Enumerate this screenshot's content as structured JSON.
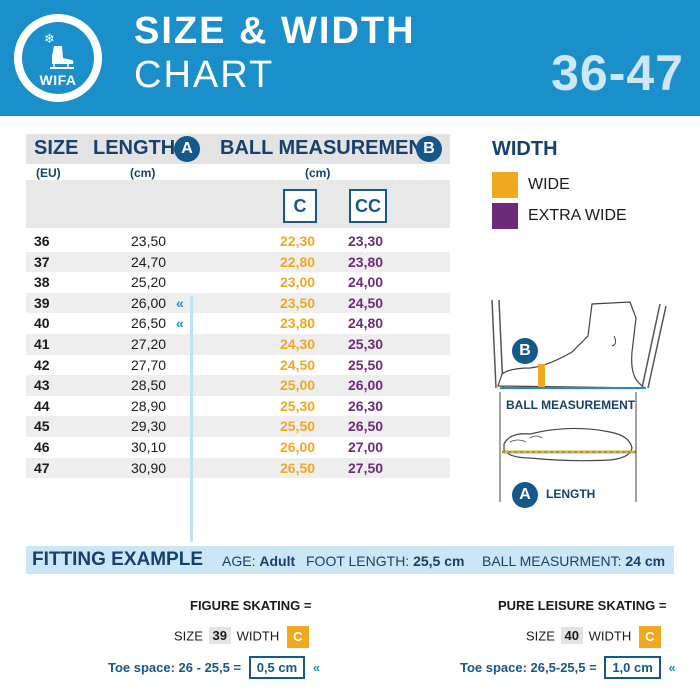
{
  "header": {
    "logo_text": "WIFA",
    "title_line1": "SIZE & WIDTH",
    "title_line2": "CHART",
    "size_range": "36-47",
    "background_color": "#1a8fc9"
  },
  "table": {
    "col_size": "SIZE",
    "col_size_unit": "(EU)",
    "col_length": "LENGTH",
    "col_length_badge": "A",
    "col_length_unit": "(cm)",
    "col_ball": "BALL MEASUREMENT",
    "col_ball_badge": "B",
    "col_ball_unit": "(cm)",
    "width_c_label": "C",
    "width_cc_label": "CC",
    "rows": [
      {
        "size": "36",
        "length": "23,50",
        "wide": "22,30",
        "extra_wide": "23,30",
        "marker": ""
      },
      {
        "size": "37",
        "length": "24,70",
        "wide": "22,80",
        "extra_wide": "23,80",
        "marker": ""
      },
      {
        "size": "38",
        "length": "25,20",
        "wide": "23,00",
        "extra_wide": "24,00",
        "marker": ""
      },
      {
        "size": "39",
        "length": "26,00",
        "wide": "23,50",
        "extra_wide": "24,50",
        "marker": "«"
      },
      {
        "size": "40",
        "length": "26,50",
        "wide": "23,80",
        "extra_wide": "24,80",
        "marker": "«"
      },
      {
        "size": "41",
        "length": "27,20",
        "wide": "24,30",
        "extra_wide": "25,30",
        "marker": ""
      },
      {
        "size": "42",
        "length": "27,70",
        "wide": "24,50",
        "extra_wide": "25,50",
        "marker": ""
      },
      {
        "size": "43",
        "length": "28,50",
        "wide": "25,00",
        "extra_wide": "26,00",
        "marker": ""
      },
      {
        "size": "44",
        "length": "28,90",
        "wide": "25,30",
        "extra_wide": "26,30",
        "marker": ""
      },
      {
        "size": "45",
        "length": "29,30",
        "wide": "25,50",
        "extra_wide": "26,50",
        "marker": ""
      },
      {
        "size": "46",
        "length": "30,10",
        "wide": "26,00",
        "extra_wide": "27,00",
        "marker": ""
      },
      {
        "size": "47",
        "length": "30,90",
        "wide": "26,50",
        "extra_wide": "27,50",
        "marker": ""
      }
    ]
  },
  "legend": {
    "title": "WIDTH",
    "items": [
      {
        "label": "WIDE",
        "color": "#f0a81e"
      },
      {
        "label": "EXTRA WIDE",
        "color": "#6e2a7a"
      }
    ]
  },
  "diagram": {
    "badge_b": "B",
    "ball_label": "BALL MEASUREMENT",
    "badge_a": "A",
    "length_label": "LENGTH"
  },
  "fitting": {
    "title": "FITTING EXAMPLE",
    "age_label": "AGE:",
    "age_value": "Adult",
    "foot_label": "FOOT LENGTH:",
    "foot_value": "25,5 cm",
    "ball_label": "BALL MEASURMENT:",
    "ball_value": "24 cm"
  },
  "examples": {
    "figure": {
      "heading": "FIGURE SKATING =",
      "size_label": "SIZE",
      "size_value": "39",
      "width_label": "WIDTH",
      "width_value": "C",
      "toe_label": "Toe space: 26 - 25,5 =",
      "toe_value": "0,5 cm"
    },
    "leisure": {
      "heading": "PURE LEISURE SKATING =",
      "size_label": "SIZE",
      "size_value": "40",
      "width_label": "WIDTH",
      "width_value": "C",
      "toe_label": "Toe space: 26,5-25,5 =",
      "toe_value": "1,0 cm"
    }
  },
  "colors": {
    "brand_blue": "#1a8fc9",
    "navy": "#17406d",
    "wide": "#f0a81e",
    "extra_wide": "#6e2a7a"
  }
}
